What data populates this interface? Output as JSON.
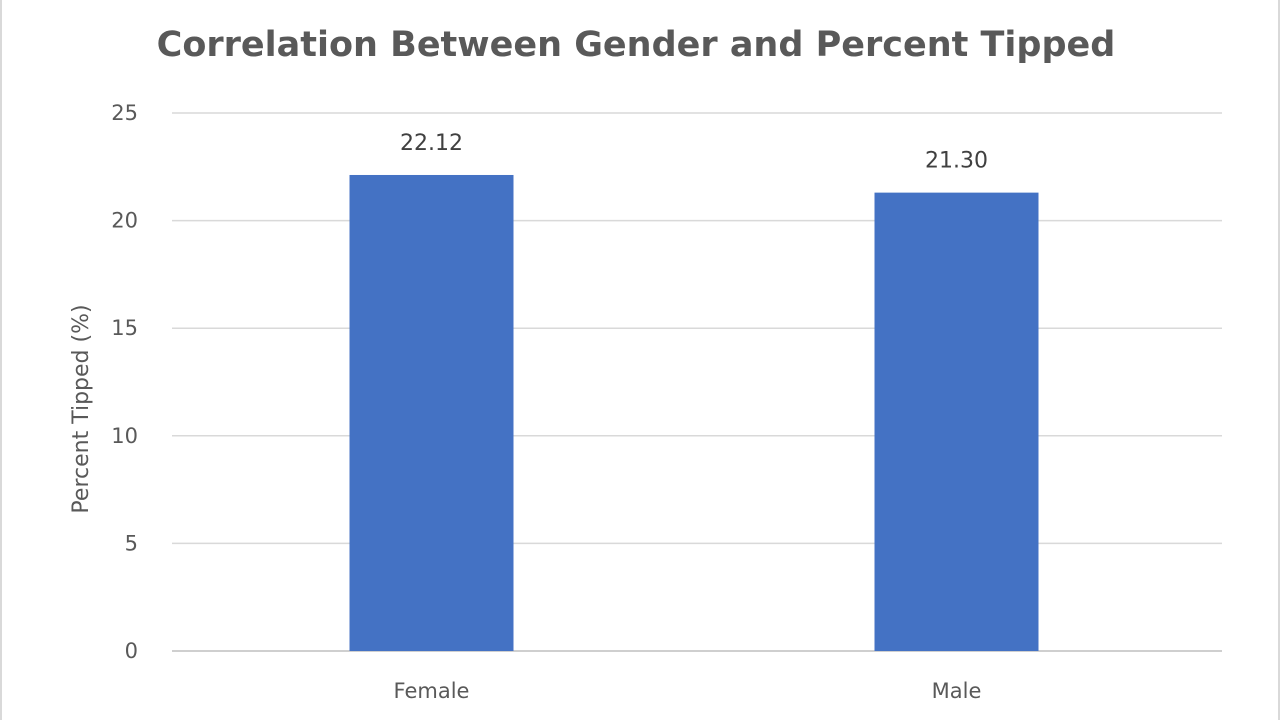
{
  "chart_data": {
    "type": "bar",
    "title": "Correlation Between Gender and Percent Tipped",
    "xlabel": "",
    "ylabel": "Percent Tipped (%)",
    "categories": [
      "Female",
      "Male"
    ],
    "values": [
      22.12,
      21.3
    ],
    "data_labels": [
      "22.12",
      "21.30"
    ],
    "ylim": [
      0,
      25
    ],
    "y_ticks": [
      0,
      5,
      10,
      15,
      20,
      25
    ],
    "grid": true,
    "legend": "none",
    "bar_color": "#4472c4"
  }
}
